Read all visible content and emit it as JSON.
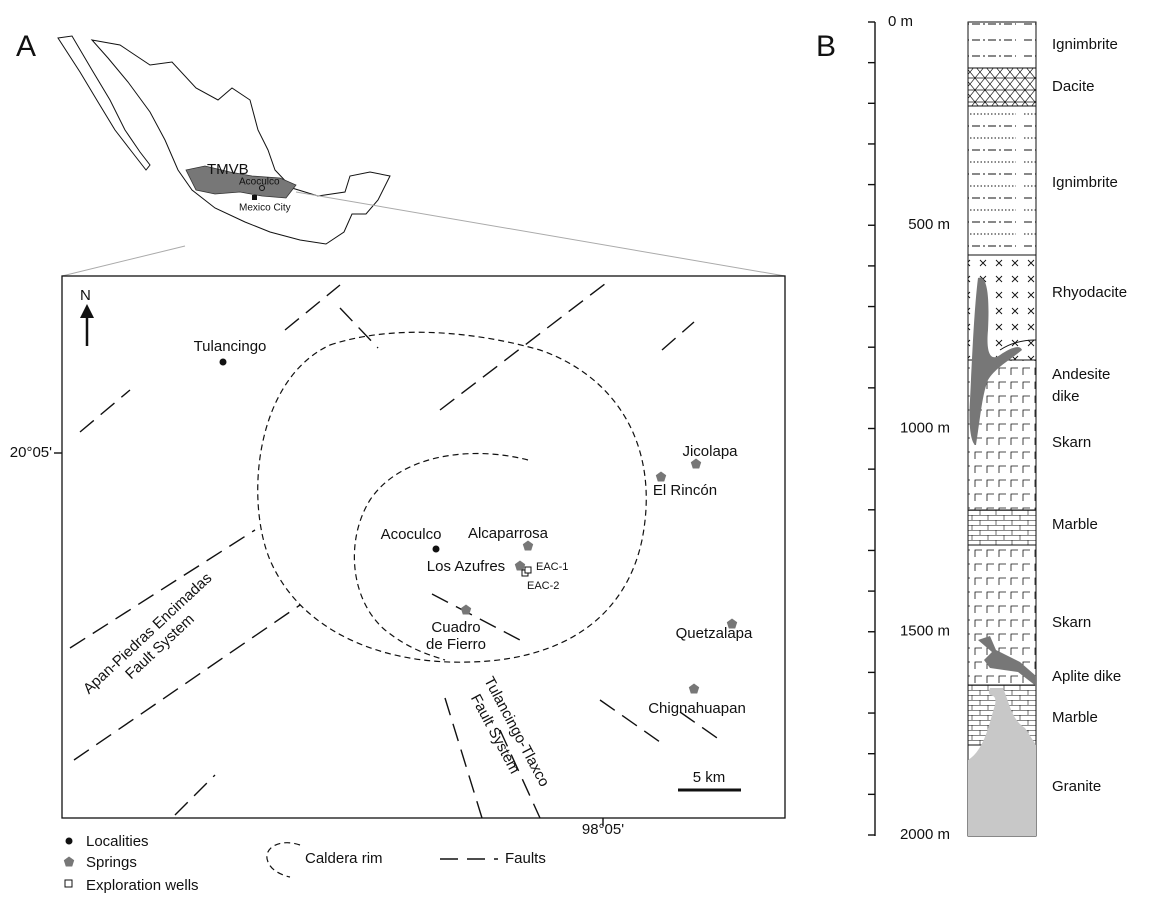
{
  "panel_a": {
    "label": "A",
    "inset": {
      "region": "TMVB",
      "site": "Acoculco",
      "capital": "Mexico City"
    },
    "map": {
      "north": "N",
      "latitude": "20°05'",
      "longitude": "98°05'",
      "scale": "5 km",
      "places": [
        "Tulancingo",
        "Acoculco",
        "Alcaparrosa",
        "Los Azufres",
        "EAC-1",
        "EAC-2",
        "Jicolapa",
        "El Rincón",
        "Quetzalapa",
        "Chignahuapan"
      ],
      "cuadro": [
        "Cuadro",
        "de Fierro"
      ],
      "fault_west": [
        "Apan-Piedras Encimadas",
        "Fault System"
      ],
      "fault_east": [
        "Tulancingo-Tlaxco",
        "Fault System"
      ]
    },
    "legend": {
      "localities": "Localities",
      "springs": "Springs",
      "wells": "Exploration wells",
      "caldera": "Caldera rim",
      "faults": "Faults"
    }
  },
  "panel_b": {
    "label": "B",
    "depth_ticks": [
      "0 m",
      "500 m",
      "1000 m",
      "1500 m",
      "2000 m"
    ],
    "layers": [
      "Ignimbrite",
      "Dacite",
      "Ignimbrite",
      "Rhyodacite",
      "Skarn",
      "Marble",
      "Skarn",
      "Marble",
      "Granite"
    ],
    "andesite": [
      "Andesite",
      "dike"
    ],
    "aplite": "Aplite dike"
  }
}
